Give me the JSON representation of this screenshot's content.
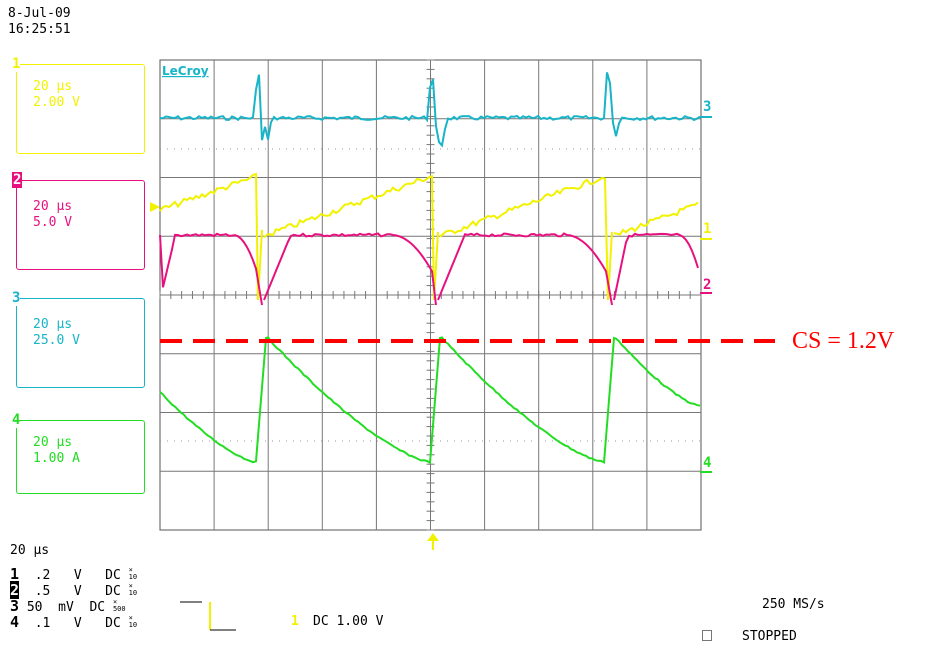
{
  "timestamp": {
    "date": "8-Jul-09",
    "time": "16:25:51"
  },
  "brand": "LeCroy",
  "channels": [
    {
      "id": "1",
      "timebase": "20 μs",
      "scale": "2.00 V",
      "color": "#f2f200"
    },
    {
      "id": "2",
      "timebase": "20 μs",
      "scale": "5.0 V",
      "color": "#e8107f"
    },
    {
      "id": "3",
      "timebase": "20 μs",
      "scale": "25.0 V",
      "color": "#18b4c8"
    },
    {
      "id": "4",
      "timebase": "20 μs",
      "scale": "1.00 A",
      "color": "#22dd22"
    }
  ],
  "trace_markers": {
    "ch3": "3",
    "ch1": "1",
    "ch2": "2",
    "ch4": "4"
  },
  "annotation": {
    "text": "CS = 1.2V",
    "color": "#ff0000"
  },
  "bottom": {
    "timebase": "20 μs",
    "rows": [
      {
        "ch": "1",
        "volts": ".2",
        "unit": "V",
        "coupling": "DC",
        "probe_top": "×",
        "probe_bottom": "10"
      },
      {
        "ch": "2",
        "volts": ".5",
        "unit": "V",
        "coupling": "DC",
        "probe_top": "×",
        "probe_bottom": "10"
      },
      {
        "ch": "3",
        "volts": "50",
        "unit": "mV",
        "coupling": "DC",
        "probe_top": "×",
        "probe_bottom": "500"
      },
      {
        "ch": "4",
        "volts": ".1",
        "unit": "V",
        "coupling": "DC",
        "probe_top": "×",
        "probe_bottom": "10"
      }
    ],
    "trigger_source": "1",
    "trigger_level": "DC 1.00 V",
    "sample_rate": "250 MS/s",
    "status": "STOPPED"
  }
}
